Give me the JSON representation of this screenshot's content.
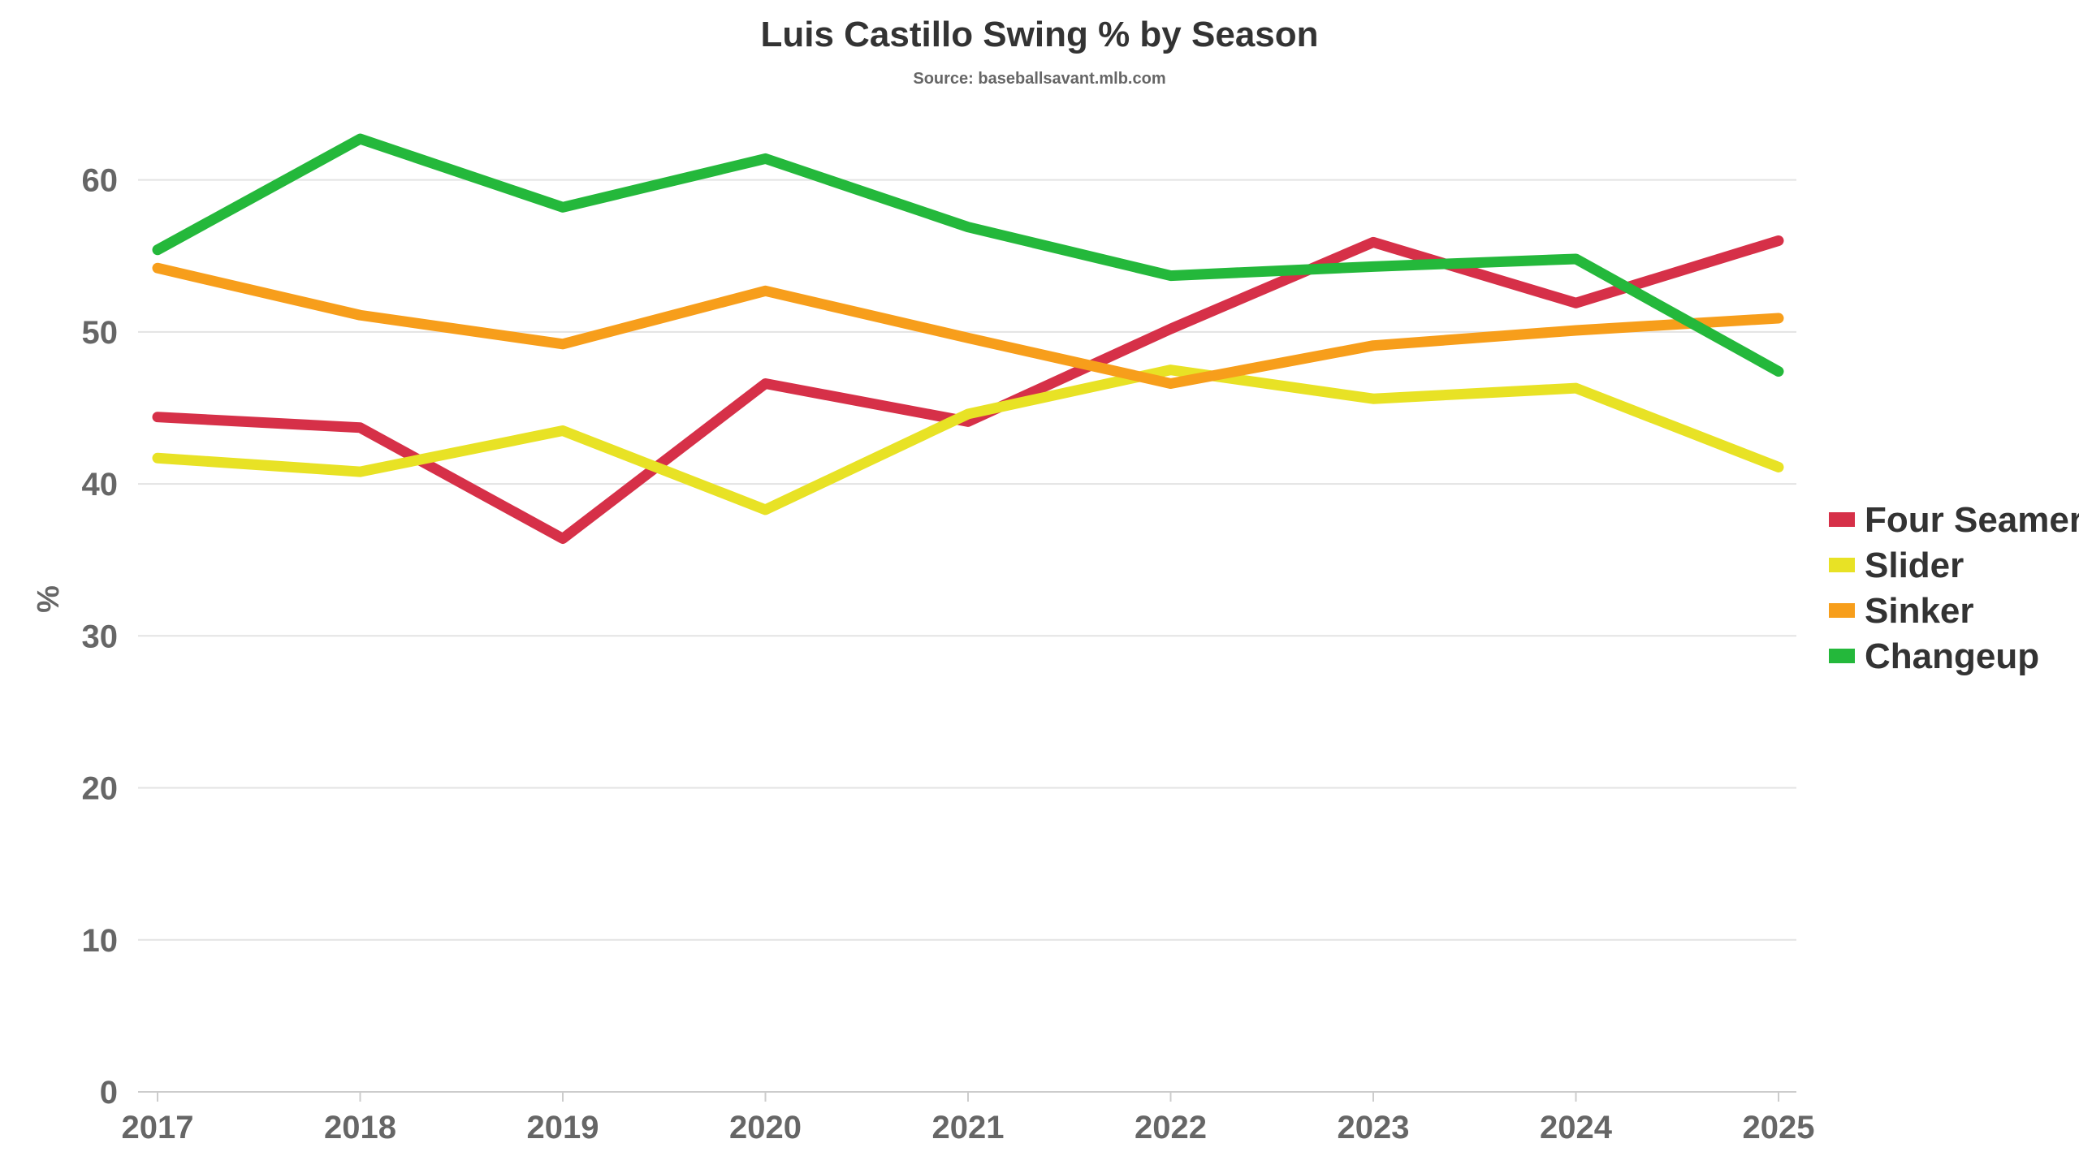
{
  "chart_data": {
    "type": "line",
    "title": "Luis Castillo Swing % by Season",
    "subtitle": "Source: baseballsavant.mlb.com",
    "xlabel": "",
    "ylabel": "%",
    "categories": [
      "2017",
      "2018",
      "2019",
      "2020",
      "2021",
      "2022",
      "2023",
      "2024",
      "2025"
    ],
    "ylim": [
      0,
      65
    ],
    "yticks": [
      0,
      10,
      20,
      30,
      40,
      50,
      60
    ],
    "grid": true,
    "legend_position": "right",
    "series": [
      {
        "name": "Four Seamer",
        "color": "#d63048",
        "values": [
          44.4,
          43.7,
          36.4,
          46.6,
          44.1,
          50.2,
          55.9,
          51.9,
          56.0
        ]
      },
      {
        "name": "Slider",
        "color": "#e8e225",
        "values": [
          41.7,
          40.8,
          43.5,
          38.3,
          44.6,
          47.5,
          45.6,
          46.3,
          41.1
        ]
      },
      {
        "name": "Sinker",
        "color": "#f79e1b",
        "values": [
          54.2,
          51.1,
          49.2,
          52.7,
          49.6,
          46.6,
          49.1,
          50.1,
          50.9
        ]
      },
      {
        "name": "Changeup",
        "color": "#24b83b",
        "values": [
          55.4,
          62.7,
          58.2,
          61.4,
          56.9,
          53.7,
          54.3,
          54.8,
          47.4
        ]
      }
    ]
  }
}
